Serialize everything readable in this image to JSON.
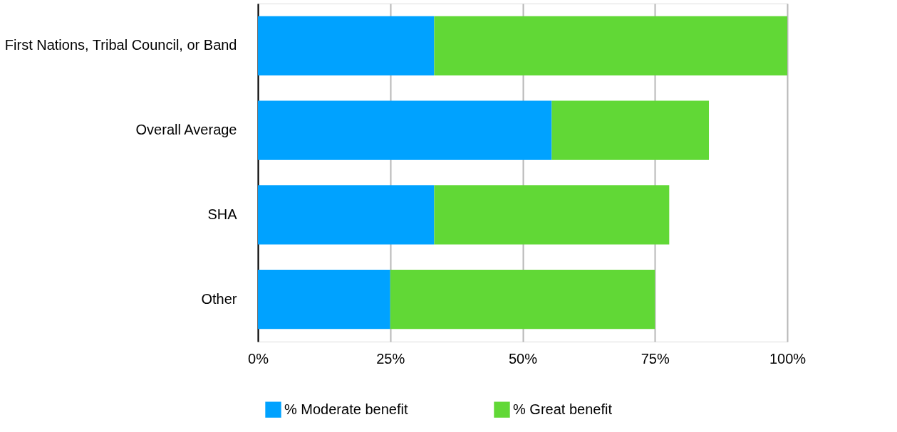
{
  "chart_data": {
    "type": "bar",
    "orientation": "horizontal",
    "stacked": true,
    "categories": [
      "First Nations, Tribal Council, or Band",
      "Overall Average",
      "SHA",
      "Other"
    ],
    "series": [
      {
        "name": "% Moderate benefit",
        "color": "#00a2ff",
        "values": [
          33.3,
          55.5,
          33.3,
          25
        ]
      },
      {
        "name": "% Great benefit",
        "color": "#61d836",
        "values": [
          66.7,
          29.7,
          44.4,
          50
        ]
      }
    ],
    "xlim": [
      0,
      100
    ],
    "xticks": [
      {
        "value": 0,
        "label": "0%"
      },
      {
        "value": 25,
        "label": "25%"
      },
      {
        "value": 50,
        "label": "50%"
      },
      {
        "value": 75,
        "label": "75%"
      },
      {
        "value": 100,
        "label": "100%"
      }
    ],
    "grid": "x",
    "legend": "bottom"
  }
}
